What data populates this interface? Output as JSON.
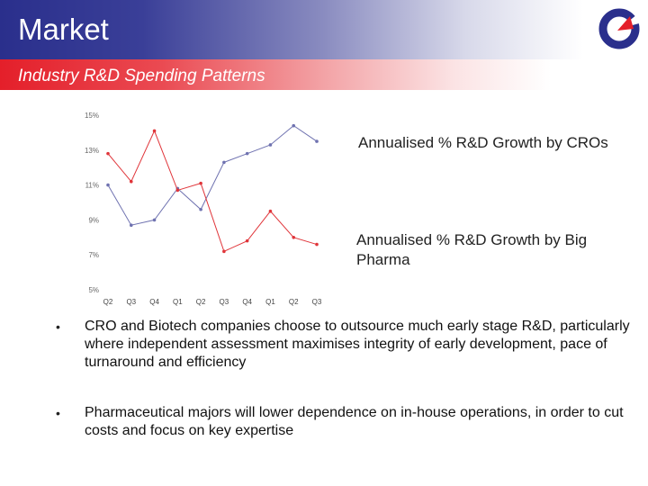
{
  "header": {
    "title": "Market",
    "subtitle": "Industry R&D Spending Patterns"
  },
  "colors": {
    "cro_series": "#6f72b0",
    "pharma_series": "#e0353a",
    "title_bar": "#2a2f8c",
    "subtitle_bar": "#e41f2a"
  },
  "icons": {
    "logo": "company-logo-icon"
  },
  "chart_data": {
    "type": "line",
    "categories": [
      "Q2",
      "Q3",
      "Q4",
      "Q1",
      "Q2",
      "Q3",
      "Q4",
      "Q1",
      "Q2",
      "Q3"
    ],
    "yticks": [
      "5%",
      "7%",
      "9%",
      "11%",
      "13%",
      "15%"
    ],
    "ylim": [
      5,
      15
    ],
    "grid": false,
    "series": [
      {
        "name": "Annualised % R&D Growth by CROs",
        "color": "#6f72b0",
        "values": [
          11.0,
          8.7,
          9.0,
          10.8,
          9.6,
          12.3,
          12.8,
          13.3,
          14.4,
          13.5
        ]
      },
      {
        "name": "Annualised % R&D Growth by Big Pharma",
        "color": "#e0353a",
        "values": [
          12.8,
          11.2,
          14.1,
          10.7,
          11.1,
          7.2,
          7.8,
          9.5,
          8.0,
          7.6
        ]
      }
    ]
  },
  "legend": {
    "cro": "Annualised % R&D Growth by CROs",
    "pharma": "Annualised % R&D Growth by Big Pharma"
  },
  "bullets": [
    "CRO and Biotech companies choose to outsource much early stage R&D, particularly where independent assessment maximises integrity of early development, pace of turnaround and efficiency",
    "Pharmaceutical majors will lower dependence on in-house operations, in order to cut costs and focus on key expertise"
  ]
}
